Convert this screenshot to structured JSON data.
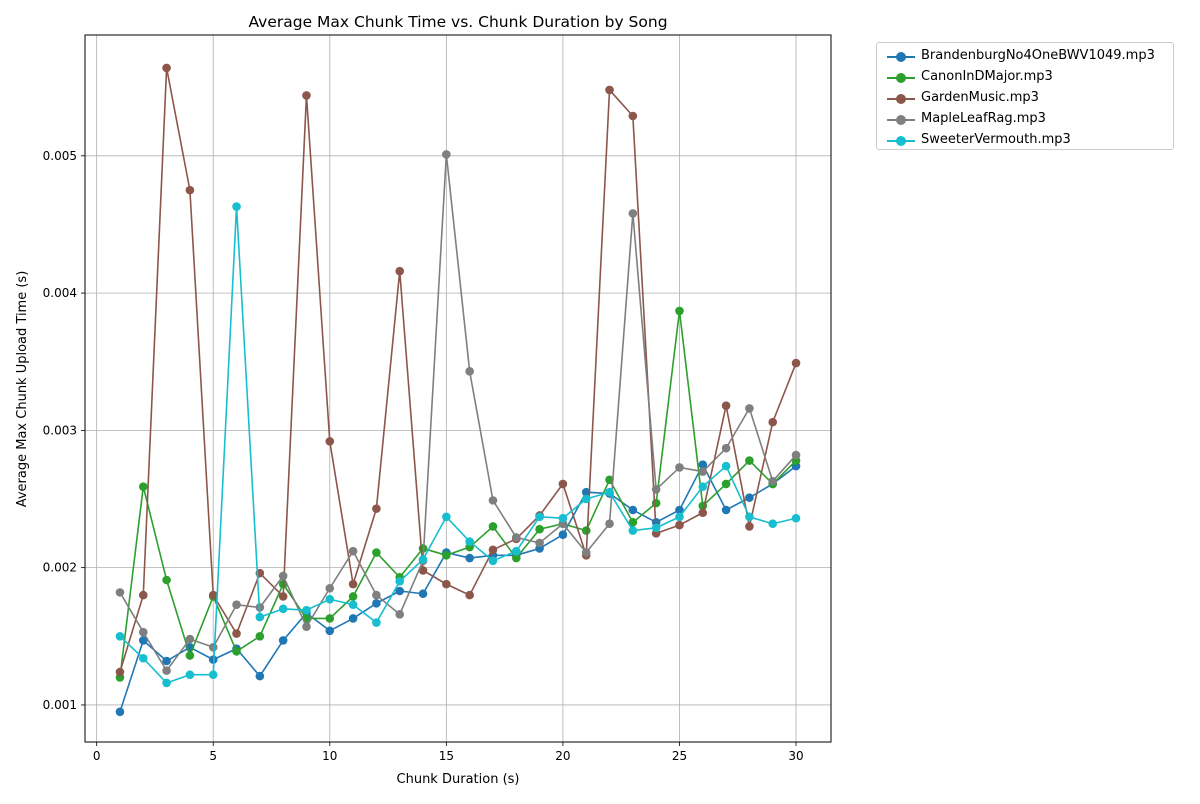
{
  "chart_data": {
    "type": "line",
    "title": "Average Max Chunk Time vs. Chunk Duration by Song",
    "xlabel": "Chunk Duration (s)",
    "ylabel": "Average Max Chunk Upload Time (s)",
    "xlim": [
      -0.5,
      31.5
    ],
    "ylim": [
      0.00073,
      0.00588
    ],
    "xticks": [
      0,
      5,
      10,
      15,
      20,
      25,
      30
    ],
    "yticks": [
      0.001,
      0.002,
      0.003,
      0.004,
      0.005
    ],
    "xtick_labels": [
      "0",
      "5",
      "10",
      "15",
      "20",
      "25",
      "30"
    ],
    "ytick_labels": [
      "0.001",
      "0.002",
      "0.003",
      "0.004",
      "0.005"
    ],
    "grid": true,
    "legend_position": "outside-top-right",
    "x": [
      1,
      2,
      3,
      4,
      5,
      6,
      7,
      8,
      9,
      10,
      11,
      12,
      13,
      14,
      15,
      16,
      17,
      18,
      19,
      20,
      21,
      22,
      23,
      24,
      25,
      26,
      27,
      28,
      29,
      30
    ],
    "series": [
      {
        "name": "BrandenburgNo4OneBWV1049.mp3",
        "color": "#1f77b4",
        "values": [
          0.00095,
          0.00147,
          0.00132,
          0.00142,
          0.00133,
          0.00141,
          0.00121,
          0.00147,
          0.00167,
          0.00154,
          0.00163,
          0.00174,
          0.00183,
          0.00181,
          0.00211,
          0.00207,
          0.00209,
          0.00209,
          0.00214,
          0.00224,
          0.00255,
          0.00254,
          0.00242,
          0.00233,
          0.00242,
          0.00275,
          0.00242,
          0.00251,
          0.00261,
          0.00274
        ]
      },
      {
        "name": "CanonInDMajor.mp3",
        "color": "#2ca02c",
        "values": [
          0.0012,
          0.00259,
          0.00191,
          0.00136,
          0.00179,
          0.00139,
          0.0015,
          0.00188,
          0.00163,
          0.00163,
          0.00179,
          0.00211,
          0.00193,
          0.00214,
          0.00209,
          0.00215,
          0.0023,
          0.00207,
          0.00228,
          0.00232,
          0.00227,
          0.00264,
          0.00233,
          0.00247,
          0.00387,
          0.00245,
          0.00261,
          0.00278,
          0.00261,
          0.00278
        ]
      },
      {
        "name": "GardenMusic.mp3",
        "color": "#8c564b",
        "values": [
          0.00124,
          0.0018,
          0.00564,
          0.00475,
          0.0018,
          0.00152,
          0.00196,
          0.00179,
          0.00544,
          0.00292,
          0.00188,
          0.00243,
          0.00416,
          0.00198,
          0.00188,
          0.0018,
          0.00213,
          0.00221,
          0.00238,
          0.00261,
          0.00209,
          0.00548,
          0.00529,
          0.00225,
          0.00231,
          0.0024,
          0.00318,
          0.0023,
          0.00306,
          0.00349
        ]
      },
      {
        "name": "MapleLeafRag.mp3",
        "color": "#7f7f7f",
        "values": [
          0.00182,
          0.00153,
          0.00125,
          0.00148,
          0.00142,
          0.00173,
          0.00171,
          0.00194,
          0.00157,
          0.00185,
          0.00212,
          0.0018,
          0.00166,
          0.00205,
          0.00501,
          0.00343,
          0.00249,
          0.00222,
          0.00218,
          0.00232,
          0.00211,
          0.00232,
          0.00458,
          0.00257,
          0.00273,
          0.0027,
          0.00287,
          0.00316,
          0.00263,
          0.00282
        ]
      },
      {
        "name": "SweeterVermouth.mp3",
        "color": "#17becf",
        "values": [
          0.0015,
          0.00134,
          0.00116,
          0.00122,
          0.00122,
          0.00463,
          0.00164,
          0.0017,
          0.00169,
          0.00177,
          0.00173,
          0.0016,
          0.0019,
          0.00206,
          0.00237,
          0.00219,
          0.00205,
          0.00212,
          0.00237,
          0.00236,
          0.0025,
          0.00255,
          0.00227,
          0.00229,
          0.00237,
          0.00259,
          0.00274,
          0.00237,
          0.00232,
          0.00236
        ]
      }
    ]
  }
}
